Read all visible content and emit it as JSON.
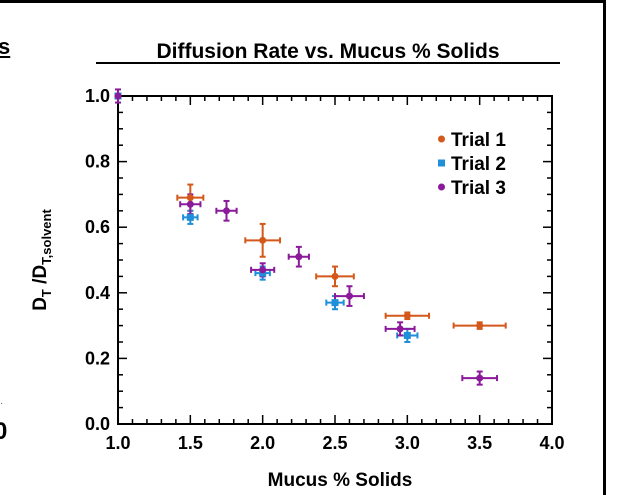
{
  "edge_fragments": {
    "left_title_tail": "s",
    "left_axis_tail": "0"
  },
  "chart_data": {
    "type": "scatter",
    "title": "Diffusion Rate vs. Mucus % Solids",
    "xlabel": "Mucus % Solids",
    "ylabel": "D_T /D_T,solvent",
    "ylabel_parts": {
      "main1": "D",
      "sub1": "T",
      "main2": " /D",
      "sub2": "T,solvent"
    },
    "xlim": [
      1.0,
      4.0
    ],
    "ylim": [
      0.0,
      1.0
    ],
    "x_ticks": [
      "1.0",
      "1.5",
      "2.0",
      "2.5",
      "3.0",
      "3.5",
      "4.0"
    ],
    "y_ticks": [
      "0.0",
      "0.2",
      "0.4",
      "0.6",
      "0.8",
      "1.0"
    ],
    "legend_position": "top-right",
    "series": [
      {
        "name": "Trial 1",
        "color": "#d4581a",
        "marker": "circle",
        "points": [
          {
            "x": 1.0,
            "y": 1.0,
            "xerr": 0.0,
            "yerr": 0.0
          },
          {
            "x": 1.5,
            "y": 0.69,
            "xerr": 0.09,
            "yerr": 0.04
          },
          {
            "x": 2.0,
            "y": 0.56,
            "xerr": 0.12,
            "yerr": 0.05
          },
          {
            "x": 2.5,
            "y": 0.45,
            "xerr": 0.13,
            "yerr": 0.03
          },
          {
            "x": 3.0,
            "y": 0.33,
            "xerr": 0.15,
            "yerr": 0.01
          },
          {
            "x": 3.5,
            "y": 0.3,
            "xerr": 0.18,
            "yerr": 0.01
          }
        ]
      },
      {
        "name": "Trial 2",
        "color": "#1e8fd8",
        "marker": "square",
        "points": [
          {
            "x": 1.0,
            "y": 1.0,
            "xerr": 0.0,
            "yerr": 0.0
          },
          {
            "x": 1.5,
            "y": 0.63,
            "xerr": 0.05,
            "yerr": 0.02
          },
          {
            "x": 2.0,
            "y": 0.46,
            "xerr": 0.05,
            "yerr": 0.02
          },
          {
            "x": 2.5,
            "y": 0.37,
            "xerr": 0.06,
            "yerr": 0.02
          },
          {
            "x": 3.0,
            "y": 0.27,
            "xerr": 0.07,
            "yerr": 0.02
          }
        ]
      },
      {
        "name": "Trial 3",
        "color": "#8b1a9b",
        "marker": "circle",
        "points": [
          {
            "x": 1.0,
            "y": 1.0,
            "xerr": 0.0,
            "yerr": 0.02
          },
          {
            "x": 1.5,
            "y": 0.67,
            "xerr": 0.07,
            "yerr": 0.03
          },
          {
            "x": 1.75,
            "y": 0.65,
            "xerr": 0.07,
            "yerr": 0.03
          },
          {
            "x": 2.0,
            "y": 0.47,
            "xerr": 0.08,
            "yerr": 0.02
          },
          {
            "x": 2.25,
            "y": 0.51,
            "xerr": 0.07,
            "yerr": 0.03
          },
          {
            "x": 2.6,
            "y": 0.39,
            "xerr": 0.1,
            "yerr": 0.03
          },
          {
            "x": 2.95,
            "y": 0.29,
            "xerr": 0.1,
            "yerr": 0.02
          },
          {
            "x": 3.5,
            "y": 0.14,
            "xerr": 0.12,
            "yerr": 0.02
          }
        ]
      }
    ]
  }
}
